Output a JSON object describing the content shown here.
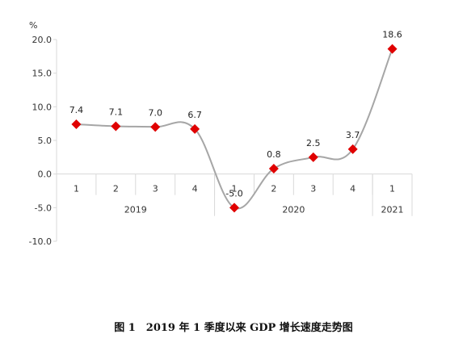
{
  "caption": "图 1　2019 年 1 季度以来 GDP 增长速度走势图",
  "colors": {
    "line": "#a6a6a6",
    "marker": "#e00000",
    "grid": "#d9d9d9"
  },
  "chart_data": {
    "type": "line",
    "title": "",
    "ylabel": "%",
    "xlabel": "",
    "ylim": [
      -10,
      20
    ],
    "yticks": [
      "20.0",
      "15.0",
      "10.0",
      "5.0",
      "0.0",
      "-5.0",
      "-10.0"
    ],
    "categories": [
      "1",
      "2",
      "3",
      "4",
      "1",
      "2",
      "3",
      "4",
      "1"
    ],
    "year_groups": [
      {
        "label": "2019",
        "count": 4
      },
      {
        "label": "2020",
        "count": 4
      },
      {
        "label": "2021",
        "count": 1
      }
    ],
    "series": [
      {
        "values": [
          7.4,
          7.1,
          7.0,
          6.7,
          -5.0,
          0.8,
          2.5,
          3.7,
          18.6
        ],
        "labels": [
          "7.4",
          "7.1",
          "7.0",
          "6.7",
          "-5.0",
          "0.8",
          "2.5",
          "3.7",
          "18.6"
        ]
      }
    ],
    "grid": false,
    "marker": "diamond",
    "smooth": true
  }
}
